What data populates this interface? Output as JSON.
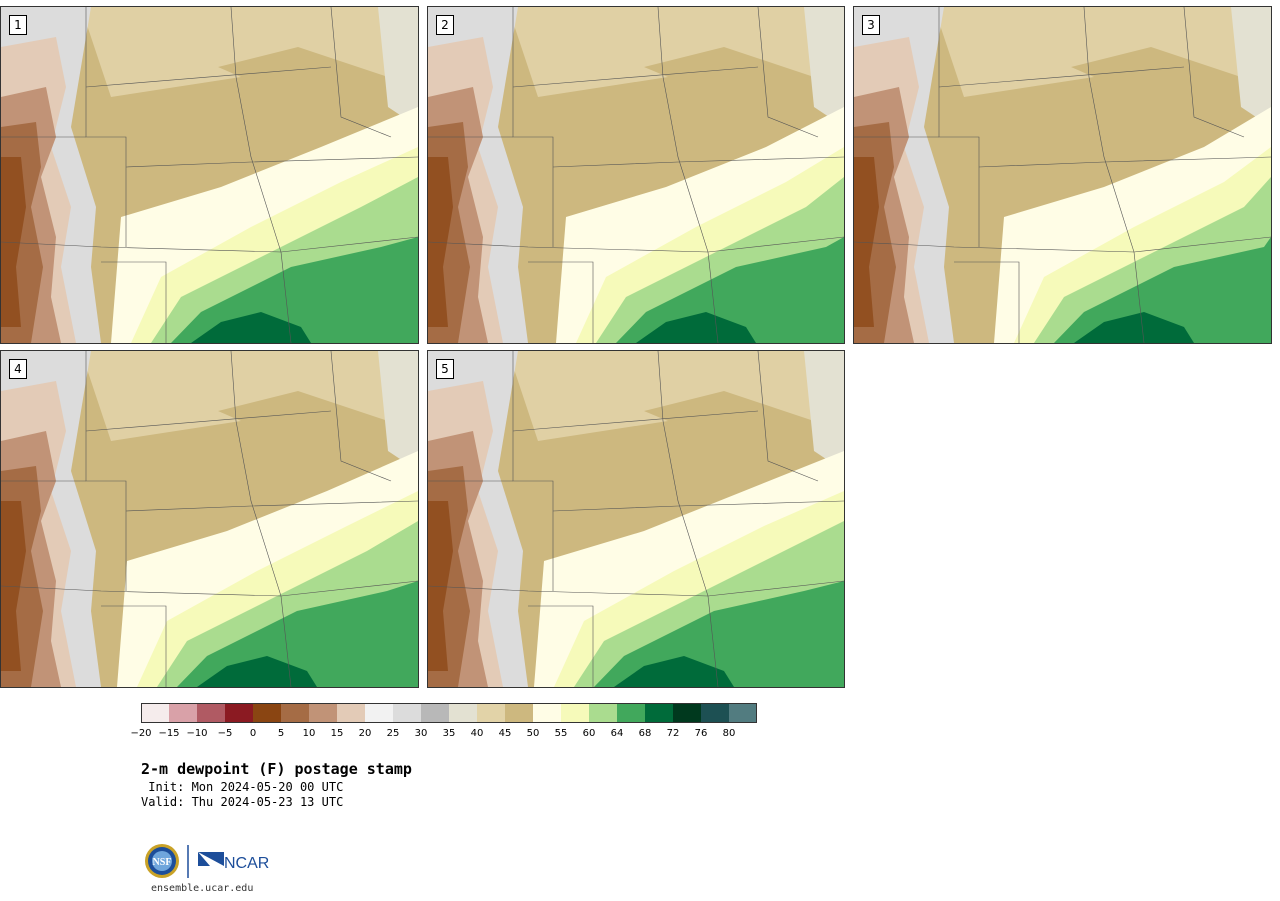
{
  "panels": [
    {
      "label": "1",
      "variant": 0
    },
    {
      "label": "2",
      "variant": 1
    },
    {
      "label": "3",
      "variant": 2
    },
    {
      "label": "4",
      "variant": 3
    },
    {
      "label": "5",
      "variant": 4
    }
  ],
  "colorbar": {
    "colors": [
      "#f5ecec",
      "#d9a1a8",
      "#b05a63",
      "#8b1a22",
      "#8a4512",
      "#a56c45",
      "#c19377",
      "#e3cbb7",
      "#f2f2f2",
      "#dcdcdc",
      "#b8b8b8",
      "#e3e1d2",
      "#e2d3a8",
      "#cdb87f",
      "#fffde6",
      "#f6faba",
      "#aadc8f",
      "#41a85c",
      "#006b3a",
      "#00391e",
      "#1d5053",
      "#527c80"
    ],
    "tick_labels": [
      "−20",
      "−15",
      "−10",
      "−5",
      "0",
      "5",
      "10",
      "15",
      "20",
      "25",
      "30",
      "35",
      "40",
      "45",
      "50",
      "55",
      "60",
      "64",
      "68",
      "72",
      "76",
      "80"
    ]
  },
  "title": "2-m dewpoint (F) postage stamp",
  "init": " Init: Mon 2024-05-20 00 UTC",
  "valid": "Valid: Thu 2024-05-23 13 UTC",
  "logo_nsf": "NSF",
  "logo_ncar": "NCAR",
  "url": "ensemble.ucar.edu"
}
